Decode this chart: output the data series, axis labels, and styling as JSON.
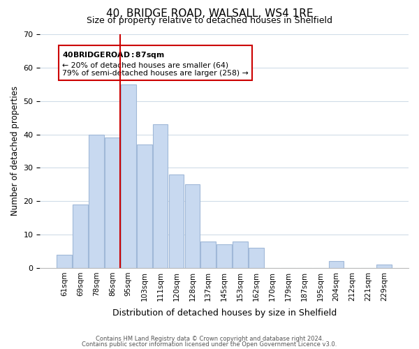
{
  "title": "40, BRIDGE ROAD, WALSALL, WS4 1RE",
  "subtitle": "Size of property relative to detached houses in Shelfield",
  "xlabel": "Distribution of detached houses by size in Shelfield",
  "ylabel": "Number of detached properties",
  "bar_labels": [
    "61sqm",
    "69sqm",
    "78sqm",
    "86sqm",
    "95sqm",
    "103sqm",
    "111sqm",
    "120sqm",
    "128sqm",
    "137sqm",
    "145sqm",
    "153sqm",
    "162sqm",
    "170sqm",
    "179sqm",
    "187sqm",
    "195sqm",
    "204sqm",
    "212sqm",
    "221sqm",
    "229sqm"
  ],
  "bar_values": [
    4,
    19,
    40,
    39,
    55,
    37,
    43,
    28,
    25,
    8,
    7,
    8,
    6,
    0,
    0,
    0,
    0,
    2,
    0,
    0,
    1
  ],
  "bar_color": "#c8d9f0",
  "bar_edge_color": "#a0b8d8",
  "vline_x": 3.5,
  "vline_color": "#cc0000",
  "ylim": [
    0,
    70
  ],
  "yticks": [
    0,
    10,
    20,
    30,
    40,
    50,
    60,
    70
  ],
  "annotation_title": "40 BRIDGE ROAD: 87sqm",
  "annotation_line1": "← 20% of detached houses are smaller (64)",
  "annotation_line2": "79% of semi-detached houses are larger (258) →",
  "annotation_box_edge": "#cc0000",
  "footer1": "Contains HM Land Registry data © Crown copyright and database right 2024.",
  "footer2": "Contains public sector information licensed under the Open Government Licence v3.0.",
  "background_color": "#ffffff",
  "grid_color": "#d0dce8"
}
